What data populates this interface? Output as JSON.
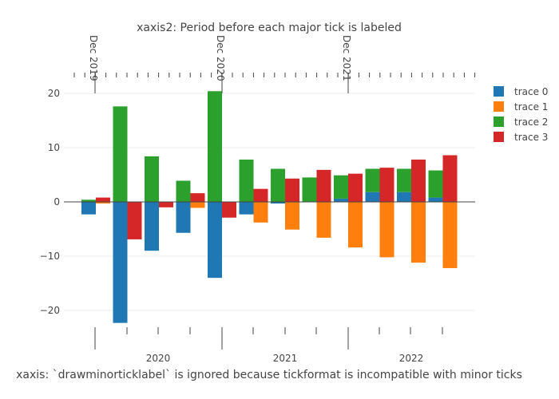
{
  "chart_data": {
    "type": "bar",
    "barmode": "relative",
    "title": "xaxis2: Period before each major tick is labeled",
    "xlabel": "xaxis: `drawminorticklabel` is ignored because tickformat is incompatible with minor ticks",
    "ylabel": "",
    "ylim": [
      -22.3,
      20.4
    ],
    "yticks": [
      -20,
      -10,
      0,
      10,
      20
    ],
    "ytick_labels": [
      "−20",
      "−10",
      "0",
      "10",
      "20"
    ],
    "bottom_axis_labels": [
      "2020",
      "2021",
      "2022"
    ],
    "top_axis_labels": [
      "Dec 2019",
      "Dec 2020",
      "Dec 2021"
    ],
    "legend_position": "right",
    "series": [
      {
        "name": "trace 0",
        "color": "#1f77b4",
        "values": [
          -2.3,
          -22.3,
          -9,
          -5.7,
          -14,
          -2.3,
          -0.3,
          0,
          0.6,
          1.8,
          1.8,
          0.8
        ]
      },
      {
        "name": "trace 1",
        "color": "#ff7f0e",
        "values": [
          -0.3,
          0,
          0,
          -1.1,
          0,
          -3.8,
          -5.1,
          -6.6,
          -8.4,
          -10.2,
          -11.2,
          -12.2
        ]
      },
      {
        "name": "trace 2",
        "color": "#2ca02c",
        "values": [
          0.4,
          17.6,
          8.4,
          3.9,
          20.4,
          7.8,
          6.1,
          4.5,
          4.3,
          4.3,
          4.3,
          5
        ]
      },
      {
        "name": "trace 3",
        "color": "#d62728",
        "values": [
          0.8,
          -6.9,
          -1,
          1.6,
          -2.9,
          2.4,
          4.3,
          5.9,
          5.2,
          6.3,
          7.8,
          8.6
        ]
      }
    ]
  }
}
